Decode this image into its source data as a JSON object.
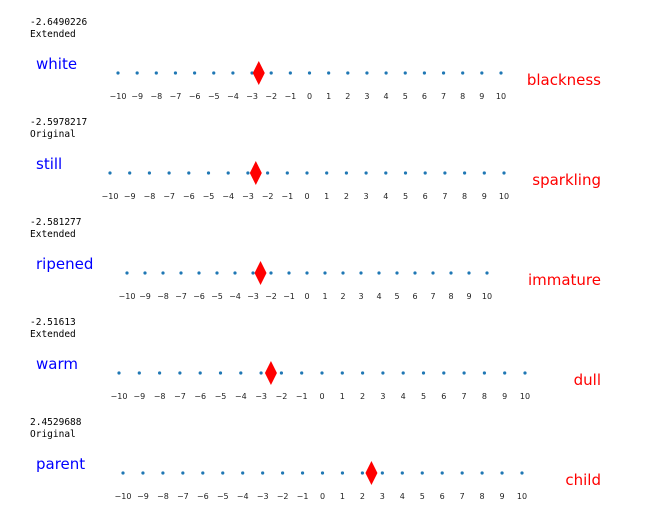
{
  "chart_data": [
    {
      "type": "scatter",
      "score_text": "-2.6490226",
      "version": "Extended",
      "left_word": "white",
      "right_word": "blackness",
      "value": -2.6490226,
      "xlim": [
        -10,
        10
      ],
      "ticks": [
        -10,
        -9,
        -8,
        -7,
        -6,
        -5,
        -4,
        -3,
        -2,
        -1,
        0,
        1,
        2,
        3,
        4,
        5,
        6,
        7,
        8,
        9,
        10
      ]
    },
    {
      "type": "scatter",
      "score_text": "-2.5978217",
      "version": "Original",
      "left_word": "still",
      "right_word": "sparkling",
      "value": -2.5978217,
      "xlim": [
        -10,
        10
      ],
      "ticks": [
        -10,
        -9,
        -8,
        -7,
        -6,
        -5,
        -4,
        -3,
        -2,
        -1,
        0,
        1,
        2,
        3,
        4,
        5,
        6,
        7,
        8,
        9,
        10
      ]
    },
    {
      "type": "scatter",
      "score_text": "-2.581277",
      "version": "Extended",
      "left_word": "ripened",
      "right_word": "immature",
      "value": -2.581277,
      "xlim": [
        -10,
        10
      ],
      "ticks": [
        -10,
        -9,
        -8,
        -7,
        -6,
        -5,
        -4,
        -3,
        -2,
        -1,
        0,
        1,
        2,
        3,
        4,
        5,
        6,
        7,
        8,
        9,
        10
      ]
    },
    {
      "type": "scatter",
      "score_text": "-2.51613",
      "version": "Extended",
      "left_word": "warm",
      "right_word": "dull",
      "value": -2.51613,
      "xlim": [
        -10,
        10
      ],
      "ticks": [
        -10,
        -9,
        -8,
        -7,
        -6,
        -5,
        -4,
        -3,
        -2,
        -1,
        0,
        1,
        2,
        3,
        4,
        5,
        6,
        7,
        8,
        9,
        10
      ]
    },
    {
      "type": "scatter",
      "score_text": "2.4529688",
      "version": "Original",
      "left_word": "parent",
      "right_word": "child",
      "value": 2.4529688,
      "xlim": [
        -10,
        10
      ],
      "ticks": [
        -10,
        -9,
        -8,
        -7,
        -6,
        -5,
        -4,
        -3,
        -2,
        -1,
        0,
        1,
        2,
        3,
        4,
        5,
        6,
        7,
        8,
        9,
        10
      ]
    }
  ],
  "colors": {
    "dots": "#1f77b4",
    "marker": "#ff0000",
    "left_word": "#0000ff",
    "right_word": "#ff0000"
  }
}
